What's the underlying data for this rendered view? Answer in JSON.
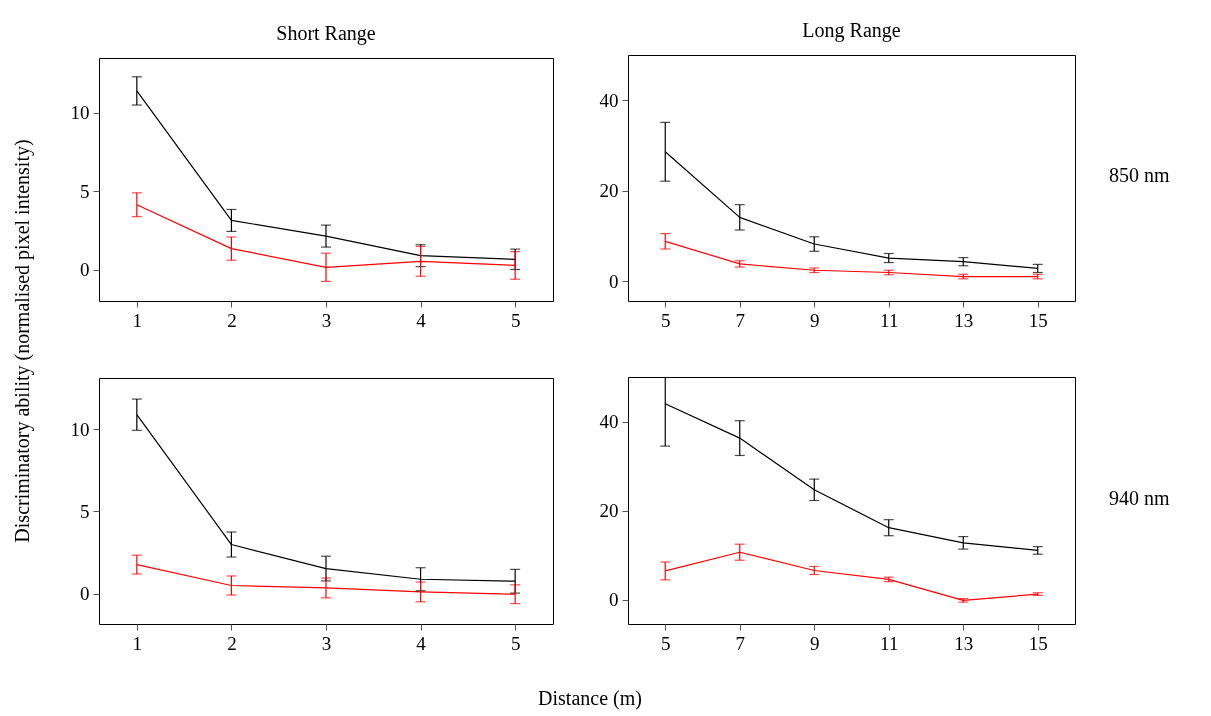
{
  "chart_data": [
    {
      "type": "line",
      "title": "Short Range",
      "ylabel": "Discriminatory ability (normalised pixel intensity)",
      "x": [
        1,
        2,
        3,
        4,
        5
      ],
      "xlim": [
        0.6,
        5.4
      ],
      "xticks": [
        1,
        2,
        3,
        4,
        5
      ],
      "ylim": [
        -2,
        13.5
      ],
      "yticks": [
        0,
        5,
        10
      ],
      "grid": false,
      "legend": false,
      "series": [
        {
          "color": "#000000",
          "values": [
            11.4,
            3.14,
            2.14,
            0.89,
            0.66
          ],
          "errors": [
            0.9,
            0.7,
            0.7,
            0.7,
            0.65
          ]
        },
        {
          "color": "#ff0000",
          "values": [
            4.14,
            1.34,
            0.15,
            0.53,
            0.27
          ],
          "errors": [
            0.76,
            0.74,
            0.9,
            0.95,
            0.88
          ]
        }
      ]
    },
    {
      "type": "line",
      "title": "Long Range",
      "annotations": [
        "850 nm"
      ],
      "x": [
        5,
        7,
        9,
        11,
        13,
        15
      ],
      "xlim": [
        4,
        16
      ],
      "xticks": [
        5,
        7,
        9,
        11,
        13,
        15
      ],
      "ylim": [
        -4.4,
        50
      ],
      "yticks": [
        0,
        20,
        40
      ],
      "grid": false,
      "legend": false,
      "series": [
        {
          "color": "#000000",
          "values": [
            28.6,
            14.1,
            8.2,
            5.1,
            4.3,
            2.8
          ],
          "errors": [
            6.5,
            2.8,
            1.6,
            1.0,
            0.9,
            0.9
          ]
        },
        {
          "color": "#ff0000",
          "values": [
            8.8,
            3.8,
            2.4,
            1.9,
            1.0,
            1.0
          ],
          "errors": [
            1.7,
            0.7,
            0.5,
            0.5,
            0.5,
            0.5
          ]
        }
      ]
    },
    {
      "type": "line",
      "xlabel": "Distance (m)",
      "x": [
        1,
        2,
        3,
        4,
        5
      ],
      "xlim": [
        0.6,
        5.4
      ],
      "xticks": [
        1,
        2,
        3,
        4,
        5
      ],
      "ylim": [
        -1.85,
        13.1
      ],
      "yticks": [
        0,
        5,
        10
      ],
      "grid": false,
      "legend": false,
      "series": [
        {
          "color": "#000000",
          "values": [
            10.87,
            2.98,
            1.52,
            0.87,
            0.75
          ],
          "errors": [
            0.95,
            0.76,
            0.75,
            0.7,
            0.72
          ]
        },
        {
          "color": "#ff0000",
          "values": [
            1.76,
            0.49,
            0.34,
            0.1,
            -0.04
          ],
          "errors": [
            0.57,
            0.58,
            0.6,
            0.6,
            0.57
          ]
        }
      ]
    },
    {
      "type": "line",
      "annotations": [
        "940 nm"
      ],
      "x": [
        5,
        7,
        9,
        11,
        13,
        15
      ],
      "xlim": [
        4,
        16
      ],
      "xticks": [
        5,
        7,
        9,
        11,
        13,
        15
      ],
      "ylim": [
        -5.4,
        50
      ],
      "yticks": [
        0,
        20,
        40
      ],
      "grid": false,
      "legend": false,
      "series": [
        {
          "color": "#000000",
          "values": [
            44.0,
            36.3,
            24.7,
            16.2,
            12.8,
            11.1
          ],
          "errors": [
            [
              34.5,
              50
            ],
            3.9,
            2.4,
            1.8,
            1.4,
            0.85
          ]
        },
        {
          "color": "#ff0000",
          "values": [
            6.5,
            10.7,
            6.6,
            4.6,
            -0.1,
            1.3
          ],
          "errors": [
            2.0,
            1.8,
            0.9,
            0.5,
            0.4,
            0.3
          ]
        }
      ]
    }
  ]
}
